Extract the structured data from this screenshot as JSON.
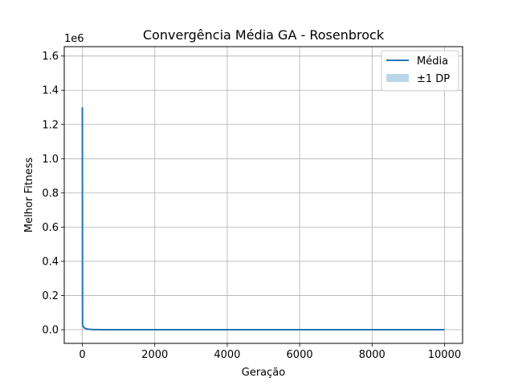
{
  "chart_data": {
    "type": "line",
    "title": "Convergência Média GA - Rosenbrock",
    "xlabel": "Geração",
    "ylabel": "Melhor Fitness",
    "y_offset_label": "1e6",
    "y_scale_factor": 1000000,
    "xlim": [
      -500,
      10500
    ],
    "ylim": [
      -0.08,
      1.655
    ],
    "xticks": [
      0,
      2000,
      4000,
      6000,
      8000,
      10000
    ],
    "yticks": [
      0.0,
      0.2,
      0.4,
      0.6,
      0.8,
      1.0,
      1.2,
      1.4,
      1.6
    ],
    "xtick_labels": [
      "0",
      "2000",
      "4000",
      "6000",
      "8000",
      "10000"
    ],
    "ytick_labels": [
      "0.0",
      "0.2",
      "0.4",
      "0.6",
      "0.8",
      "1.0",
      "1.2",
      "1.4",
      "1.6"
    ],
    "grid": true,
    "legend_position": "top-right",
    "series": [
      {
        "name": "Média",
        "kind": "line",
        "color": "#1f77b4",
        "x": [
          0,
          5,
          10,
          20,
          40,
          60,
          100,
          150,
          200,
          300,
          400,
          600,
          1000,
          2000,
          5000,
          10000
        ],
        "y": [
          1.3,
          0.032,
          0.026,
          0.02,
          0.014,
          0.01,
          0.006,
          0.0035,
          0.002,
          0.0008,
          0.0004,
          0.0001,
          0.0,
          0.0,
          0.0,
          0.0
        ]
      },
      {
        "name": "±1 DP",
        "kind": "band",
        "color": "#1f77b4"
      }
    ]
  }
}
